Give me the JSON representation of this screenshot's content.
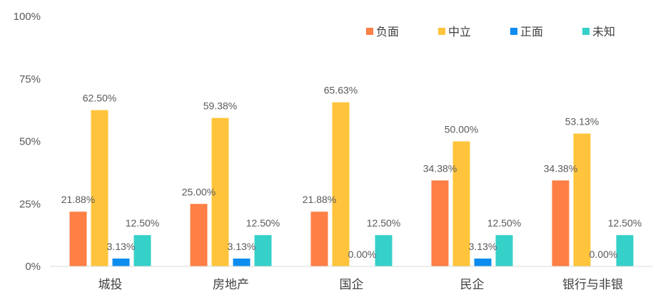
{
  "chart_data": {
    "type": "bar",
    "categories": [
      "城投",
      "房地产",
      "国企",
      "民企",
      "银行与非银"
    ],
    "series": [
      {
        "name": "负面",
        "color": "#FF7F45",
        "values": [
          21.88,
          25.0,
          21.88,
          34.38,
          34.38
        ],
        "labels": [
          "21.88%",
          "25.00%",
          "21.88%",
          "34.38%",
          "34.38%"
        ]
      },
      {
        "name": "中立",
        "color": "#FFC43B",
        "values": [
          62.5,
          59.38,
          65.63,
          50.0,
          53.13
        ],
        "labels": [
          "62.50%",
          "59.38%",
          "65.63%",
          "50.00%",
          "53.13%"
        ]
      },
      {
        "name": "正面",
        "color": "#0D8CF0",
        "values": [
          3.13,
          3.13,
          0.0,
          3.13,
          0.0
        ],
        "labels": [
          "3.13%",
          "3.13%",
          "0.00%",
          "3.13%",
          "0.00%"
        ]
      },
      {
        "name": "未知",
        "color": "#35D0C8",
        "values": [
          12.5,
          12.5,
          12.5,
          12.5,
          12.5
        ],
        "labels": [
          "12.50%",
          "12.50%",
          "12.50%",
          "12.50%",
          "12.50%"
        ]
      }
    ],
    "y_ticks": [
      {
        "value": 0,
        "label": "0%"
      },
      {
        "value": 25,
        "label": "25%"
      },
      {
        "value": 50,
        "label": "50%"
      },
      {
        "value": 75,
        "label": "75%"
      },
      {
        "value": 100,
        "label": "100%"
      }
    ],
    "ylim": [
      0,
      100
    ],
    "grid": false,
    "legend_position": "top-right"
  }
}
